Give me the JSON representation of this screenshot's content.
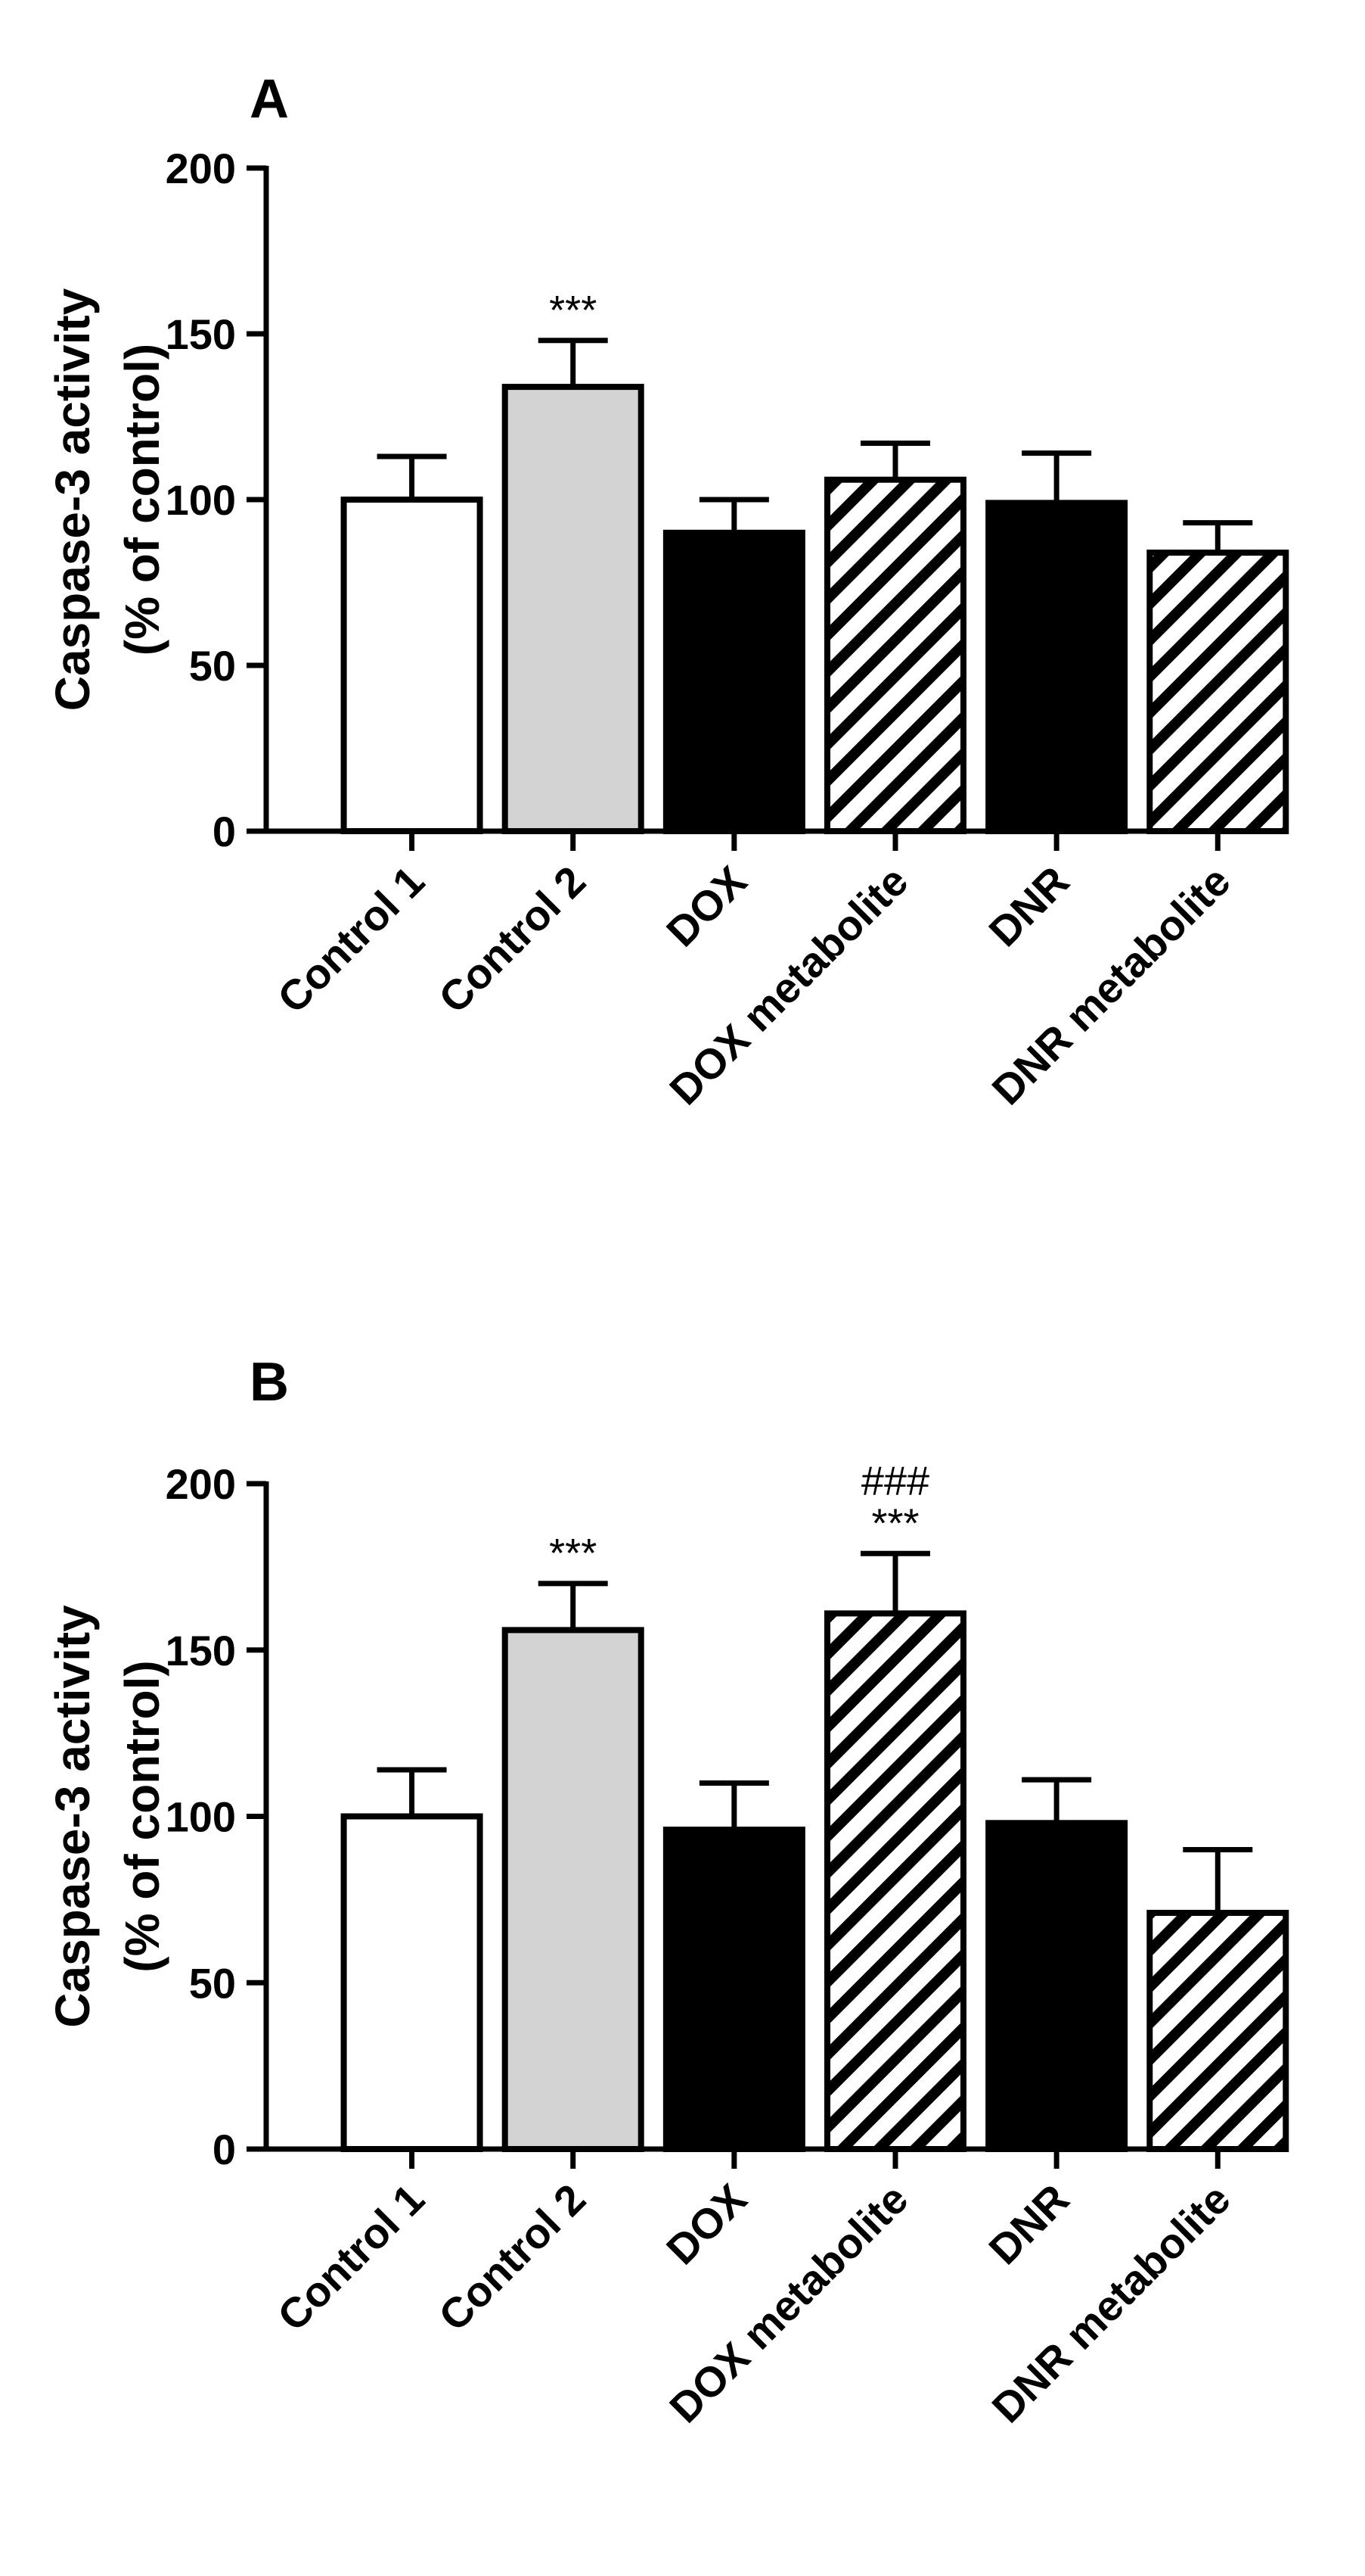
{
  "colors": {
    "ink": "#000000",
    "control2_fill": "#d3d3d3",
    "white": "#ffffff"
  },
  "chart_data": [
    {
      "panel": "A",
      "type": "bar",
      "ylabel_line1": "Caspase-3 activity",
      "ylabel_line2": "(% of control)",
      "ylim": [
        0,
        200
      ],
      "yticks": [
        0,
        50,
        100,
        150,
        200
      ],
      "categories": [
        "Control 1",
        "Control 2",
        "DOX",
        "DOX metabolite",
        "DNR",
        "DNR metabolite"
      ],
      "values": [
        100,
        134,
        90,
        106,
        99,
        84
      ],
      "errors": [
        13,
        14,
        10,
        11,
        15,
        9
      ],
      "fills": [
        "white",
        "gray",
        "black",
        "hatched",
        "black",
        "hatched"
      ],
      "annotations": [
        {
          "category": "Control 2",
          "lines": [
            "***"
          ]
        }
      ]
    },
    {
      "panel": "B",
      "type": "bar",
      "ylabel_line1": "Caspase-3 activity",
      "ylabel_line2": "(% of control)",
      "ylim": [
        0,
        200
      ],
      "yticks": [
        0,
        50,
        100,
        150,
        200
      ],
      "categories": [
        "Control 1",
        "Control 2",
        "DOX",
        "DOX metabolite",
        "DNR",
        "DNR metabolite"
      ],
      "values": [
        100,
        156,
        96,
        161,
        98,
        71
      ],
      "errors": [
        14,
        14,
        14,
        18,
        13,
        19
      ],
      "fills": [
        "white",
        "gray",
        "black",
        "hatched",
        "black",
        "hatched"
      ],
      "annotations": [
        {
          "category": "Control 2",
          "lines": [
            "***"
          ]
        },
        {
          "category": "DOX metabolite",
          "lines": [
            "###",
            "***"
          ]
        }
      ]
    }
  ]
}
